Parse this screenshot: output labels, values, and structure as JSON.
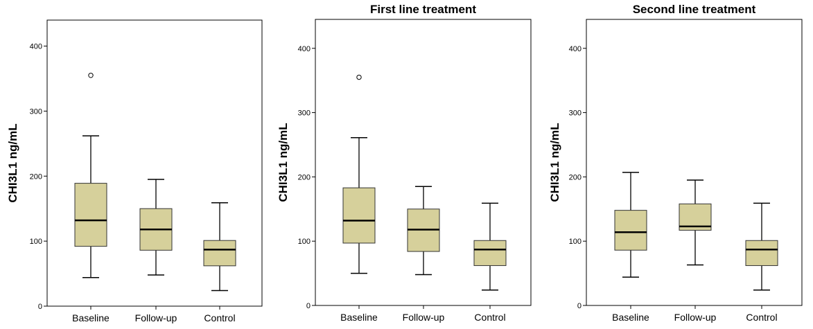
{
  "chart_data": [
    {
      "type": "boxplot",
      "title": "",
      "ylabel": "CHI3L1 ng/mL",
      "xlabel": "",
      "ylim": [
        0,
        440
      ],
      "yticks": [
        "0",
        "100",
        "200",
        "300",
        "400"
      ],
      "grid": false,
      "box_color": "#d6d09b",
      "categories": [
        "Baseline",
        "Follow-up",
        "Control"
      ],
      "boxes": [
        {
          "whisker_low": 44,
          "q1": 92,
          "median": 132,
          "q3": 189,
          "whisker_high": 262,
          "outliers": [
            355
          ]
        },
        {
          "whisker_low": 48,
          "q1": 86,
          "median": 118,
          "q3": 150,
          "whisker_high": 195,
          "outliers": []
        },
        {
          "whisker_low": 24,
          "q1": 62,
          "median": 87,
          "q3": 101,
          "whisker_high": 159,
          "outliers": []
        }
      ]
    },
    {
      "type": "boxplot",
      "title": "First line treatment",
      "ylabel": "CHI3L1 ng/mL",
      "xlabel": "",
      "ylim": [
        0,
        445
      ],
      "yticks": [
        "0",
        "100",
        "200",
        "300",
        "400"
      ],
      "grid": false,
      "box_color": "#d6d09b",
      "categories": [
        "Baseline",
        "Follow-up",
        "Control"
      ],
      "boxes": [
        {
          "whisker_low": 50,
          "q1": 97,
          "median": 132,
          "q3": 183,
          "whisker_high": 261,
          "outliers": [
            355
          ]
        },
        {
          "whisker_low": 48,
          "q1": 84,
          "median": 118,
          "q3": 150,
          "whisker_high": 185,
          "outliers": []
        },
        {
          "whisker_low": 24,
          "q1": 62,
          "median": 87,
          "q3": 101,
          "whisker_high": 159,
          "outliers": []
        }
      ]
    },
    {
      "type": "boxplot",
      "title": "Second line treatment",
      "ylabel": "CHI3L1 ng/mL",
      "xlabel": "",
      "ylim": [
        0,
        445
      ],
      "yticks": [
        "0",
        "100",
        "200",
        "300",
        "400"
      ],
      "grid": false,
      "box_color": "#d6d09b",
      "categories": [
        "Baseline",
        "Follow-up",
        "Control"
      ],
      "boxes": [
        {
          "whisker_low": 44,
          "q1": 86,
          "median": 114,
          "q3": 148,
          "whisker_high": 207,
          "outliers": []
        },
        {
          "whisker_low": 63,
          "q1": 117,
          "median": 123,
          "q3": 158,
          "whisker_high": 195,
          "outliers": []
        },
        {
          "whisker_low": 24,
          "q1": 62,
          "median": 87,
          "q3": 101,
          "whisker_high": 159,
          "outliers": []
        }
      ]
    }
  ]
}
